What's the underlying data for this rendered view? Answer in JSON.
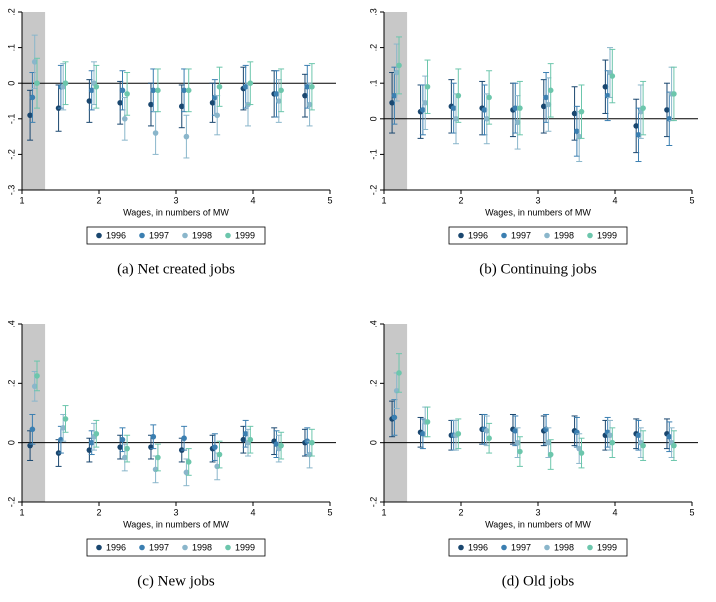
{
  "chart_data": [
    {
      "type": "scatter",
      "caption": "(a)  Net created jobs",
      "xlabel": "Wages, in numbers of MW",
      "xlim": [
        1,
        5
      ],
      "xticks": [
        1,
        2,
        3,
        4,
        5
      ],
      "ylim": [
        -0.3,
        0.2
      ],
      "yticks": [
        {
          "value": -0.3,
          "label": "-.3"
        },
        {
          "value": -0.2,
          "label": "-.2"
        },
        {
          "value": -0.1,
          "label": "-.1"
        },
        0,
        {
          "value": 0.1,
          "label": ".1"
        },
        {
          "value": 0.2,
          "label": ".2"
        }
      ],
      "reference_line": 0,
      "shaded_x": [
        1,
        1.3
      ],
      "series": [
        {
          "name": "1996",
          "color": "#1a476f",
          "x": [
            1.105,
            1.475,
            1.875,
            2.275,
            2.675,
            3.075,
            3.475,
            3.875,
            4.275,
            4.675
          ],
          "values": [
            -0.09,
            -0.07,
            -0.05,
            -0.055,
            -0.06,
            -0.065,
            -0.055,
            -0.015,
            -0.03,
            -0.035
          ],
          "error": [
            0.07,
            0.065,
            0.06,
            0.06,
            0.06,
            0.06,
            0.055,
            0.06,
            0.065,
            0.06
          ]
        },
        {
          "name": "1997",
          "color": "#3b7fb1",
          "x": [
            1.135,
            1.505,
            1.905,
            2.305,
            2.705,
            3.105,
            3.505,
            3.905,
            4.305,
            4.705
          ],
          "values": [
            -0.04,
            -0.01,
            -0.02,
            -0.02,
            -0.02,
            -0.02,
            -0.04,
            -0.01,
            -0.03,
            -0.01
          ],
          "error": [
            0.07,
            0.06,
            0.055,
            0.055,
            0.06,
            0.06,
            0.05,
            0.06,
            0.065,
            0.06
          ]
        },
        {
          "name": "1998",
          "color": "#8ab6cb",
          "x": [
            1.165,
            1.535,
            1.935,
            2.335,
            2.735,
            3.135,
            3.535,
            3.935,
            4.335,
            4.735
          ],
          "values": [
            0.06,
            -0.01,
            0.0,
            -0.1,
            -0.14,
            -0.15,
            -0.09,
            -0.06,
            -0.05,
            -0.06
          ],
          "error": [
            0.075,
            0.065,
            0.06,
            0.06,
            0.06,
            0.06,
            0.055,
            0.06,
            0.06,
            0.06
          ]
        },
        {
          "name": "1999",
          "color": "#6cc6ac",
          "x": [
            1.195,
            1.565,
            1.965,
            2.365,
            2.765,
            3.165,
            3.565,
            3.965,
            4.365,
            4.765
          ],
          "values": [
            0.0,
            0.0,
            -0.01,
            -0.03,
            -0.02,
            -0.02,
            -0.01,
            0.0,
            -0.02,
            -0.01
          ],
          "error": [
            0.07,
            0.06,
            0.06,
            0.06,
            0.06,
            0.06,
            0.055,
            0.06,
            0.06,
            0.065
          ]
        }
      ]
    },
    {
      "type": "scatter",
      "caption": "(b)  Continuing jobs",
      "xlabel": "Wages, in numbers of MW",
      "xlim": [
        1,
        5
      ],
      "xticks": [
        1,
        2,
        3,
        4,
        5
      ],
      "ylim": [
        -0.2,
        0.3
      ],
      "yticks": [
        {
          "value": -0.2,
          "label": "-.2"
        },
        {
          "value": -0.1,
          "label": "-.1"
        },
        0,
        {
          "value": 0.1,
          "label": ".1"
        },
        {
          "value": 0.2,
          "label": ".2"
        },
        {
          "value": 0.3,
          "label": ".3"
        }
      ],
      "reference_line": 0,
      "shaded_x": [
        1,
        1.3
      ],
      "series": [
        {
          "name": "1996",
          "color": "#1a476f",
          "x": [
            1.105,
            1.475,
            1.875,
            2.275,
            2.675,
            3.075,
            3.475,
            3.875,
            4.275,
            4.675
          ],
          "values": [
            0.045,
            0.02,
            0.035,
            0.03,
            0.025,
            0.035,
            0.015,
            0.09,
            -0.02,
            0.025
          ],
          "error": [
            0.085,
            0.075,
            0.075,
            0.075,
            0.075,
            0.075,
            0.075,
            0.075,
            0.075,
            0.075
          ]
        },
        {
          "name": "1997",
          "color": "#3b7fb1",
          "x": [
            1.135,
            1.505,
            1.905,
            2.305,
            2.705,
            3.105,
            3.505,
            3.905,
            4.305,
            4.705
          ],
          "values": [
            0.065,
            0.025,
            0.03,
            0.025,
            0.03,
            0.06,
            -0.035,
            0.065,
            -0.045,
            0.0
          ],
          "error": [
            0.08,
            0.07,
            0.07,
            0.07,
            0.07,
            0.07,
            0.07,
            0.07,
            0.075,
            0.075
          ]
        },
        {
          "name": "1998",
          "color": "#8ab6cb",
          "x": [
            1.165,
            1.535,
            1.935,
            2.335,
            2.735,
            3.135,
            3.535,
            3.935,
            4.335,
            4.735
          ],
          "values": [
            0.13,
            0.045,
            0.0,
            0.0,
            -0.01,
            0.04,
            -0.05,
            0.13,
            0.02,
            0.07
          ],
          "error": [
            0.08,
            0.075,
            0.07,
            0.07,
            0.075,
            0.075,
            0.07,
            0.07,
            0.075,
            0.075
          ]
        },
        {
          "name": "1999",
          "color": "#6cc6ac",
          "x": [
            1.195,
            1.565,
            1.965,
            2.365,
            2.765,
            3.165,
            3.565,
            3.965,
            4.365,
            4.765
          ],
          "values": [
            0.15,
            0.09,
            0.065,
            0.06,
            0.03,
            0.08,
            0.02,
            0.12,
            0.03,
            0.07
          ],
          "error": [
            0.08,
            0.075,
            0.075,
            0.075,
            0.075,
            0.075,
            0.075,
            0.075,
            0.075,
            0.075
          ]
        }
      ]
    },
    {
      "type": "scatter",
      "caption": "(c)  New jobs",
      "xlabel": "Wages, in numbers of MW",
      "xlim": [
        1,
        5
      ],
      "xticks": [
        1,
        2,
        3,
        4,
        5
      ],
      "ylim": [
        -0.2,
        0.4
      ],
      "yticks": [
        {
          "value": -0.2,
          "label": "-.2"
        },
        0,
        {
          "value": 0.2,
          "label": ".2"
        },
        {
          "value": 0.4,
          "label": ".4"
        }
      ],
      "reference_line": 0,
      "shaded_x": [
        1,
        1.3
      ],
      "series": [
        {
          "name": "1996",
          "color": "#1a476f",
          "x": [
            1.105,
            1.475,
            1.875,
            2.275,
            2.675,
            3.075,
            3.475,
            3.875,
            4.275,
            4.675
          ],
          "values": [
            -0.01,
            -0.035,
            -0.025,
            -0.015,
            -0.015,
            -0.025,
            -0.02,
            0.01,
            0.005,
            0.0
          ],
          "error": [
            0.05,
            0.045,
            0.04,
            0.04,
            0.04,
            0.04,
            0.045,
            0.045,
            0.045,
            0.045
          ]
        },
        {
          "name": "1997",
          "color": "#3b7fb1",
          "x": [
            1.135,
            1.505,
            1.905,
            2.305,
            2.705,
            3.105,
            3.505,
            3.905,
            4.305,
            4.705
          ],
          "values": [
            0.045,
            0.01,
            0.0,
            0.01,
            0.02,
            0.015,
            -0.015,
            0.03,
            -0.005,
            0.005
          ],
          "error": [
            0.05,
            0.045,
            0.04,
            0.04,
            0.04,
            0.04,
            0.045,
            0.045,
            0.045,
            0.045
          ]
        },
        {
          "name": "1998",
          "color": "#8ab6cb",
          "x": [
            1.165,
            1.535,
            1.935,
            2.335,
            2.735,
            3.135,
            3.535,
            3.935,
            4.335,
            4.735
          ],
          "values": [
            0.19,
            0.05,
            0.02,
            -0.05,
            -0.09,
            -0.1,
            -0.08,
            0.0,
            -0.02,
            -0.04
          ],
          "error": [
            0.05,
            0.045,
            0.045,
            0.045,
            0.045,
            0.045,
            0.045,
            0.045,
            0.045,
            0.045
          ]
        },
        {
          "name": "1999",
          "color": "#6cc6ac",
          "x": [
            1.195,
            1.565,
            1.965,
            2.365,
            2.765,
            3.165,
            3.565,
            3.965,
            4.365,
            4.765
          ],
          "values": [
            0.225,
            0.08,
            0.03,
            -0.02,
            -0.05,
            -0.065,
            -0.04,
            0.01,
            -0.01,
            0.0
          ],
          "error": [
            0.05,
            0.045,
            0.045,
            0.045,
            0.045,
            0.045,
            0.045,
            0.045,
            0.045,
            0.045
          ]
        }
      ]
    },
    {
      "type": "scatter",
      "caption": "(d)  Old jobs",
      "xlabel": "Wages, in numbers of MW",
      "xlim": [
        1,
        5
      ],
      "xticks": [
        1,
        2,
        3,
        4,
        5
      ],
      "ylim": [
        -0.2,
        0.4
      ],
      "yticks": [
        {
          "value": -0.2,
          "label": "-.2"
        },
        0,
        {
          "value": 0.2,
          "label": ".2"
        },
        {
          "value": 0.4,
          "label": ".4"
        }
      ],
      "reference_line": 0,
      "shaded_x": [
        1,
        1.3
      ],
      "series": [
        {
          "name": "1996",
          "color": "#1a476f",
          "x": [
            1.105,
            1.475,
            1.875,
            2.275,
            2.675,
            3.075,
            3.475,
            3.875,
            4.275,
            4.675
          ],
          "values": [
            0.08,
            0.035,
            0.025,
            0.045,
            0.045,
            0.04,
            0.04,
            0.025,
            0.03,
            0.03
          ],
          "error": [
            0.06,
            0.05,
            0.05,
            0.05,
            0.05,
            0.05,
            0.05,
            0.05,
            0.05,
            0.05
          ]
        },
        {
          "name": "1997",
          "color": "#3b7fb1",
          "x": [
            1.135,
            1.505,
            1.905,
            2.305,
            2.705,
            3.105,
            3.505,
            3.905,
            4.305,
            4.705
          ],
          "values": [
            0.085,
            0.03,
            0.025,
            0.045,
            0.04,
            0.045,
            0.035,
            0.035,
            0.025,
            0.02
          ],
          "error": [
            0.06,
            0.05,
            0.05,
            0.05,
            0.05,
            0.05,
            0.05,
            0.05,
            0.05,
            0.05
          ]
        },
        {
          "name": "1998",
          "color": "#8ab6cb",
          "x": [
            1.165,
            1.535,
            1.935,
            2.335,
            2.735,
            3.135,
            3.535,
            3.935,
            4.335,
            4.735
          ],
          "values": [
            0.175,
            0.07,
            0.025,
            0.04,
            0.0,
            0.0,
            -0.02,
            0.025,
            0.0,
            0.0
          ],
          "error": [
            0.06,
            0.05,
            0.05,
            0.05,
            0.05,
            0.05,
            0.05,
            0.05,
            0.05,
            0.05
          ]
        },
        {
          "name": "1999",
          "color": "#6cc6ac",
          "x": [
            1.195,
            1.565,
            1.965,
            2.365,
            2.765,
            3.165,
            3.565,
            3.965,
            4.365,
            4.765
          ],
          "values": [
            0.235,
            0.07,
            0.03,
            0.015,
            -0.03,
            -0.04,
            -0.035,
            0.0,
            -0.01,
            -0.01
          ],
          "error": [
            0.065,
            0.05,
            0.05,
            0.05,
            0.05,
            0.05,
            0.05,
            0.05,
            0.05,
            0.05
          ]
        }
      ]
    }
  ]
}
